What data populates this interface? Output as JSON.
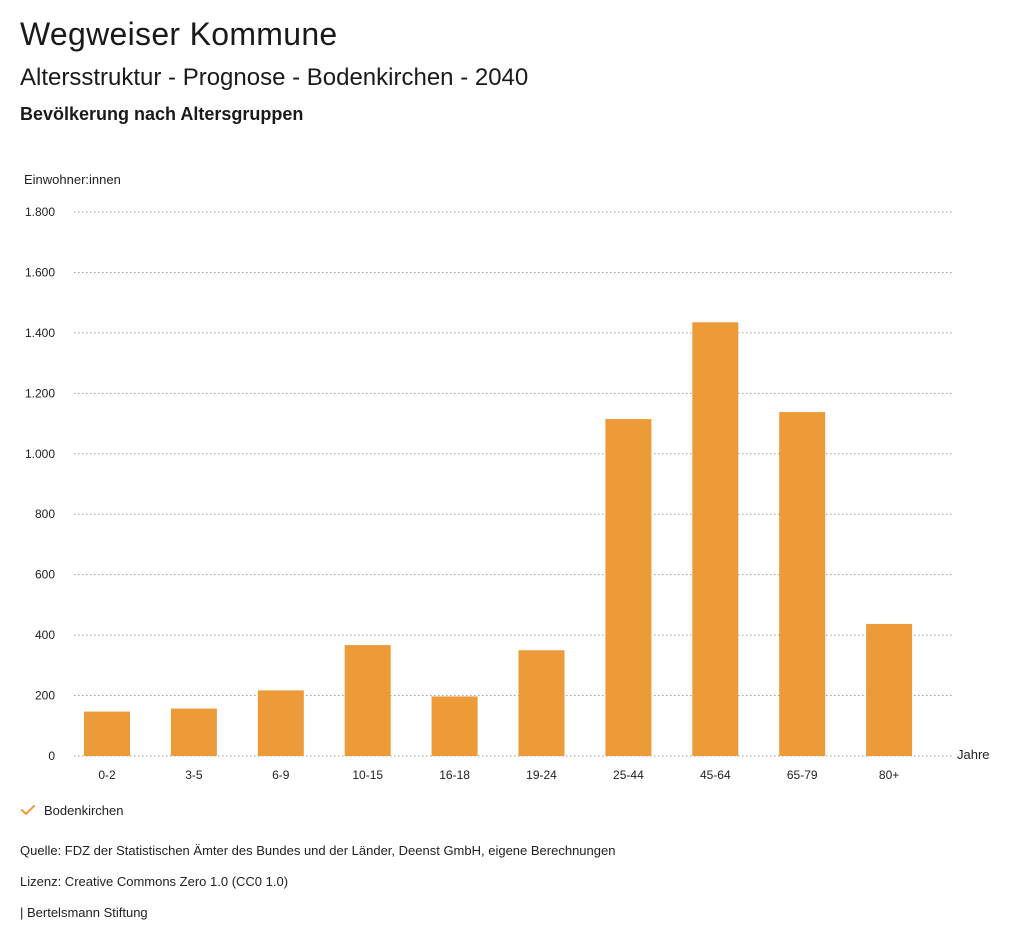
{
  "header": {
    "title": "Wegweiser Kommune",
    "subtitle": "Altersstruktur - Prognose - Bodenkirchen - 2040",
    "subsubtitle": "Bevölkerung nach Altersgruppen"
  },
  "colors": {
    "bar": "#ED9A38",
    "grid": "#9a9a9a",
    "check": "#ED9A38"
  },
  "legend": {
    "label": "Bodenkirchen",
    "icon": "checkmark-icon"
  },
  "footer": {
    "source": "Quelle: FDZ der Statistischen Ämter des Bundes und der Länder, Deenst GmbH, eigene Berechnungen",
    "license": "Lizenz: Creative Commons Zero 1.0 (CC0 1.0)",
    "publisher": "| Bertelsmann Stiftung"
  },
  "chart_data": {
    "type": "bar",
    "title": "Bevölkerung nach Altersgruppen",
    "xlabel": "Jahre",
    "ylabel": "Einwohner:innen",
    "ylim": [
      0,
      1800
    ],
    "yticks": [
      0,
      200,
      400,
      600,
      800,
      1000,
      1200,
      1400,
      1600,
      1800
    ],
    "ytick_labels": [
      "0",
      "200",
      "400",
      "600",
      "800",
      "1.000",
      "1.200",
      "1.400",
      "1.600",
      "1.800"
    ],
    "grid": true,
    "categories": [
      "0-2",
      "3-5",
      "6-9",
      "10-15",
      "16-18",
      "19-24",
      "25-44",
      "45-64",
      "65-79",
      "80+"
    ],
    "series": [
      {
        "name": "Bodenkirchen",
        "values": [
          147,
          157,
          217,
          367,
          197,
          350,
          1115,
          1435,
          1138,
          437
        ]
      }
    ]
  }
}
